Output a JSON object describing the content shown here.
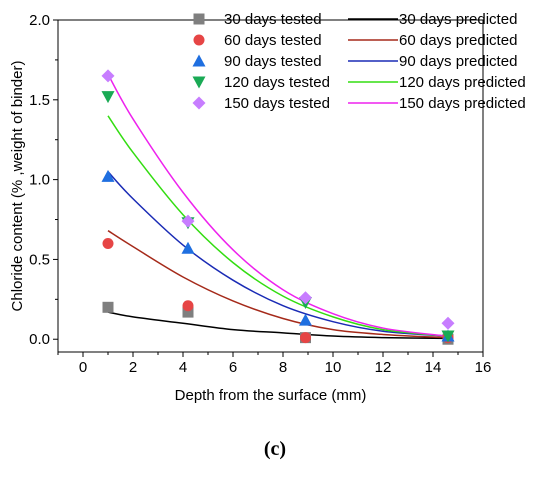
{
  "chart_data": {
    "type": "scatter",
    "xlabel": "Depth from the surface (mm)",
    "ylabel": "Chloride content (% ,weight of binder)",
    "xlim": [
      -1,
      16
    ],
    "ylim": [
      -0.08,
      2.0
    ],
    "xticks": [
      0,
      2,
      4,
      6,
      8,
      10,
      12,
      14,
      16
    ],
    "yticks": [
      0.0,
      0.5,
      1.0,
      1.5,
      2.0
    ],
    "ytick_labels": [
      "0.0",
      "0.5",
      "1.0",
      "1.5",
      "2.0"
    ],
    "legend_position": "top-right",
    "series": [
      {
        "name": "30 days tested",
        "predicted_name": "30 days predicted",
        "marker": "square",
        "color": "#7f7f7f",
        "line_color": "#000000",
        "x": [
          1.0,
          4.2,
          8.9,
          14.6
        ],
        "y": [
          0.2,
          0.17,
          0.01,
          0.0
        ],
        "predicted": {
          "x": [
            1.0,
            2.0,
            4.0,
            6.0,
            8.0,
            10.0,
            12.0,
            14.5
          ],
          "y": [
            0.17,
            0.14,
            0.1,
            0.06,
            0.04,
            0.02,
            0.01,
            0.005
          ]
        }
      },
      {
        "name": "60 days tested",
        "predicted_name": "60 days predicted",
        "marker": "circle",
        "color": "#e64545",
        "line_color": "#a52a1a",
        "x": [
          1.0,
          4.2,
          8.9,
          14.6
        ],
        "y": [
          0.6,
          0.21,
          0.01,
          0.01
        ],
        "predicted": {
          "x": [
            1.0,
            2.0,
            4.0,
            6.0,
            8.0,
            10.0,
            12.0,
            14.5
          ],
          "y": [
            0.68,
            0.58,
            0.39,
            0.24,
            0.13,
            0.06,
            0.03,
            0.01
          ]
        }
      },
      {
        "name": "90 days tested",
        "predicted_name": "90 days predicted",
        "marker": "triangle-up",
        "color": "#1f6fe0",
        "line_color": "#1a2bb5",
        "x": [
          1.0,
          4.2,
          8.9,
          14.6
        ],
        "y": [
          1.02,
          0.57,
          0.12,
          0.02
        ],
        "predicted": {
          "x": [
            1.0,
            2.0,
            4.0,
            6.0,
            8.0,
            10.0,
            12.0,
            14.5
          ],
          "y": [
            1.05,
            0.88,
            0.59,
            0.37,
            0.21,
            0.11,
            0.05,
            0.02
          ]
        }
      },
      {
        "name": "120 days tested",
        "predicted_name": "120 days predicted",
        "marker": "triangle-down",
        "color": "#1aaa55",
        "line_color": "#33dd11",
        "x": [
          1.0,
          4.2,
          8.9,
          14.6
        ],
        "y": [
          1.52,
          0.73,
          0.23,
          0.02
        ],
        "predicted": {
          "x": [
            1.0,
            2.0,
            4.0,
            6.0,
            8.0,
            10.0,
            12.0,
            14.5
          ],
          "y": [
            1.4,
            1.17,
            0.78,
            0.48,
            0.27,
            0.14,
            0.06,
            0.02
          ]
        }
      },
      {
        "name": "150 days tested",
        "predicted_name": "150 days predicted",
        "marker": "diamond",
        "color": "#c77dff",
        "line_color": "#ee22ee",
        "x": [
          1.0,
          4.2,
          8.9,
          14.6
        ],
        "y": [
          1.65,
          0.74,
          0.26,
          0.1
        ],
        "predicted": {
          "x": [
            1.0,
            2.0,
            4.0,
            6.0,
            8.0,
            10.0,
            12.0,
            14.5
          ],
          "y": [
            1.66,
            1.38,
            0.92,
            0.56,
            0.31,
            0.16,
            0.07,
            0.02
          ]
        }
      }
    ]
  },
  "panel_label": "(c)"
}
